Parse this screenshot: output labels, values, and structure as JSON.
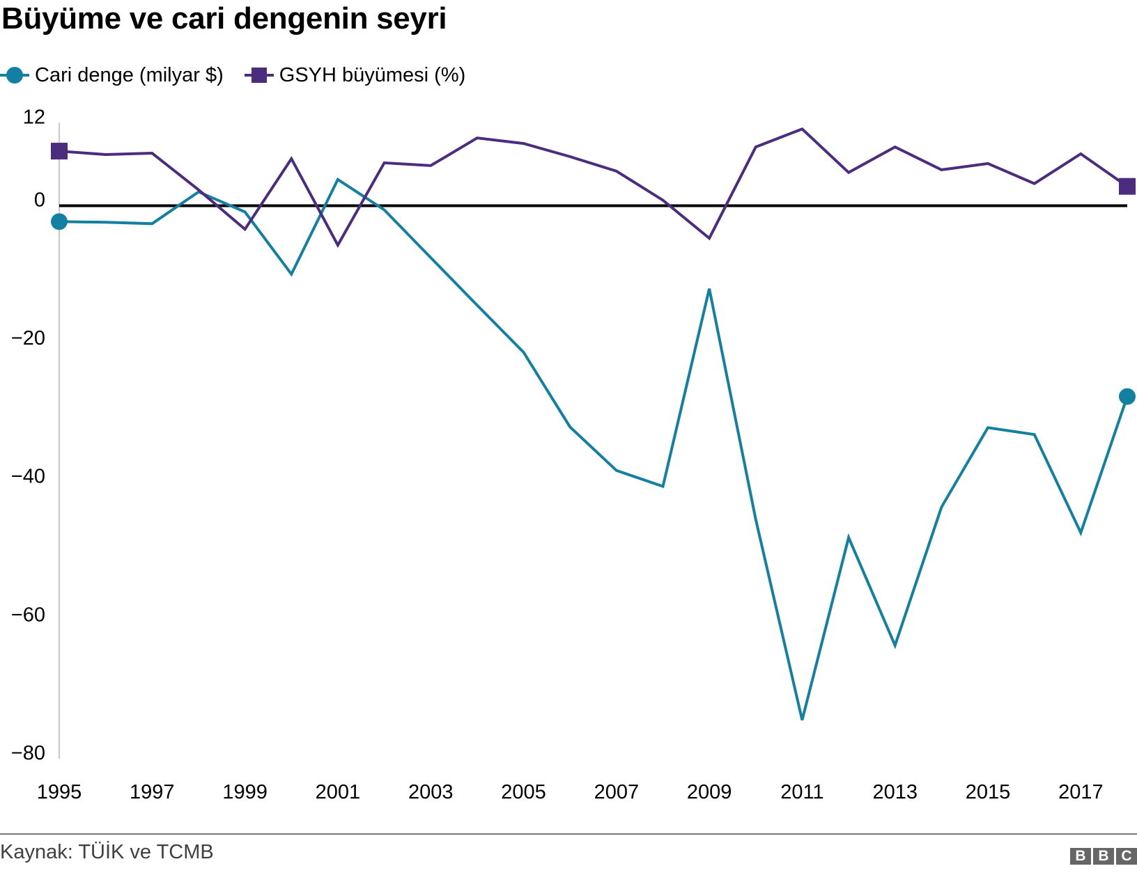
{
  "title": "Büyüme ve cari dengenin seyri",
  "legend": [
    {
      "label": "Cari denge (milyar $)",
      "color": "#1380A1",
      "marker": "circle"
    },
    {
      "label": "GSYH büyümesi (%)",
      "color": "#4B2C7F",
      "marker": "square"
    }
  ],
  "footer": {
    "source": "Kaynak: TÜİK ve TCMB",
    "logo_letters": [
      "B",
      "B",
      "C"
    ]
  },
  "chart_data": {
    "type": "line",
    "title": "Büyüme ve cari dengenin seyri",
    "xlabel": "",
    "ylabel": "",
    "x": [
      1995,
      1996,
      1997,
      1998,
      1999,
      2000,
      2001,
      2002,
      2003,
      2004,
      2005,
      2006,
      2007,
      2008,
      2009,
      2010,
      2011,
      2012,
      2013,
      2014,
      2015,
      2016,
      2017,
      2018
    ],
    "series": [
      {
        "name": "Cari denge (milyar $)",
        "color": "#1380A1",
        "values": [
          -2.3,
          -2.4,
          -2.6,
          2.0,
          -0.9,
          -9.9,
          3.8,
          -0.6,
          -7.5,
          -14.4,
          -21.2,
          -32.0,
          -38.3,
          -40.6,
          -12.0,
          -45.4,
          -74.4,
          -48.0,
          -63.6,
          -43.6,
          -32.1,
          -33.1,
          -47.3,
          -27.6
        ]
      },
      {
        "name": "GSYH büyümesi (%)",
        "color": "#4B2C7F",
        "values": [
          7.9,
          7.4,
          7.6,
          2.3,
          -3.4,
          6.8,
          -5.7,
          6.2,
          5.8,
          9.8,
          9.0,
          7.1,
          5.0,
          0.8,
          -4.7,
          8.5,
          11.1,
          4.8,
          8.5,
          5.2,
          6.1,
          3.2,
          7.5,
          2.8
        ]
      }
    ],
    "yticks": [
      12,
      0,
      -20,
      -40,
      -60,
      -80
    ],
    "ytick_labels": [
      "12",
      "0",
      "−20",
      "−40",
      "−60",
      "−80"
    ],
    "xticks": [
      1995,
      1997,
      1999,
      2001,
      2003,
      2005,
      2007,
      2009,
      2011,
      2013,
      2015,
      2017
    ],
    "xtick_labels": [
      "1995",
      "1997",
      "1999",
      "2001",
      "2003",
      "2005",
      "2007",
      "2009",
      "2011",
      "2013",
      "2015",
      "2017"
    ],
    "ylim": [
      -80,
      12
    ],
    "xlim": [
      1995,
      2018
    ],
    "grid": false,
    "zero_line": true,
    "legend_position": "top-left"
  }
}
